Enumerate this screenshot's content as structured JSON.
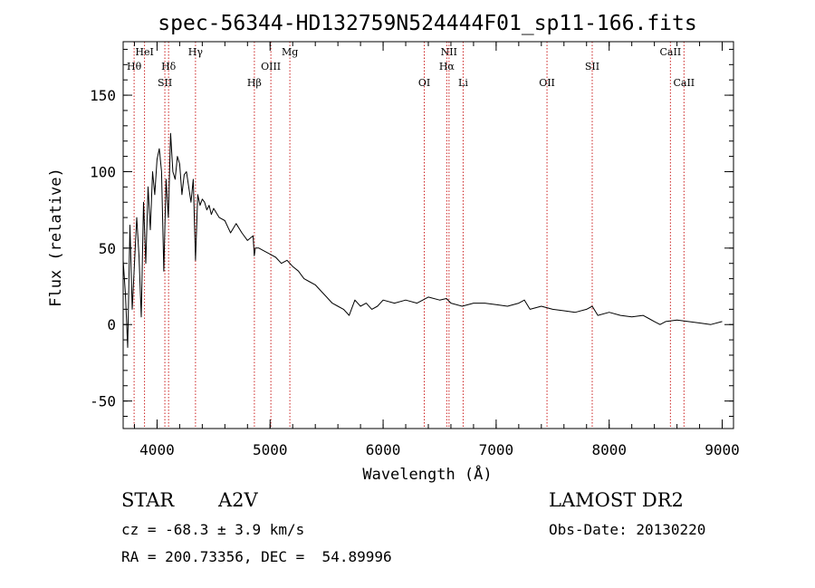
{
  "chart_data": {
    "type": "line",
    "title": "spec-56344-HD132759N524444F01_sp11-166.fits",
    "xlabel": "Wavelength (Å)",
    "ylabel": "Flux (relative)",
    "xlim": [
      3700,
      9100
    ],
    "ylim": [
      -68,
      185
    ],
    "xticks": [
      4000,
      5000,
      6000,
      7000,
      8000,
      9000
    ],
    "yticks": [
      -50,
      0,
      50,
      100,
      150
    ],
    "grid": false,
    "series": [
      {
        "x": [
          3700,
          3720,
          3740,
          3760,
          3780,
          3800,
          3820,
          3840,
          3860,
          3880,
          3900,
          3920,
          3940,
          3960,
          3980,
          4000,
          4020,
          4040,
          4060,
          4080,
          4100,
          4120,
          4140,
          4160,
          4180,
          4200,
          4220,
          4240,
          4260,
          4280,
          4300,
          4320,
          4340,
          4360,
          4380,
          4400,
          4420,
          4440,
          4460,
          4480,
          4500,
          4550,
          4600,
          4650,
          4700,
          4750,
          4800,
          4850,
          4860,
          4870,
          4900,
          4950,
          5000,
          5050,
          5100,
          5150,
          5200,
          5250,
          5300,
          5350,
          5400,
          5450,
          5500,
          5550,
          5600,
          5650,
          5700,
          5750,
          5800,
          5850,
          5900,
          5950,
          6000,
          6100,
          6200,
          6300,
          6400,
          6500,
          6560,
          6600,
          6700,
          6800,
          6900,
          7000,
          7100,
          7200,
          7250,
          7300,
          7400,
          7500,
          7600,
          7700,
          7800,
          7850,
          7900,
          8000,
          8100,
          8200,
          8300,
          8350,
          8400,
          8450,
          8500,
          8600,
          8700,
          8800,
          8900,
          9000
        ],
        "values": [
          42,
          20,
          -15,
          65,
          10,
          40,
          70,
          45,
          5,
          80,
          40,
          90,
          62,
          100,
          85,
          108,
          115,
          100,
          35,
          95,
          70,
          125,
          100,
          95,
          110,
          105,
          85,
          98,
          100,
          90,
          80,
          95,
          42,
          85,
          78,
          82,
          80,
          75,
          78,
          72,
          76,
          70,
          68,
          60,
          66,
          60,
          55,
          58,
          45,
          50,
          50,
          48,
          46,
          44,
          40,
          42,
          38,
          35,
          30,
          28,
          26,
          22,
          18,
          14,
          12,
          10,
          6,
          16,
          12,
          14,
          10,
          12,
          16,
          14,
          16,
          14,
          18,
          16,
          17,
          14,
          12,
          14,
          14,
          13,
          12,
          14,
          16,
          10,
          12,
          10,
          9,
          8,
          10,
          12,
          6,
          8,
          6,
          5,
          6,
          4,
          2,
          0,
          2,
          3,
          2,
          1,
          0,
          2
        ]
      }
    ],
    "lines": [
      {
        "label": "Hθ",
        "x": 3797,
        "row": 2
      },
      {
        "label": "HeI",
        "x": 3889,
        "row": 1
      },
      {
        "label": "SII",
        "x": 4069,
        "row": 3
      },
      {
        "label": "Hδ",
        "x": 4102,
        "row": 2
      },
      {
        "label": "Hγ",
        "x": 4340,
        "row": 1
      },
      {
        "label": "Hβ",
        "x": 4861,
        "row": 3
      },
      {
        "label": "OIII",
        "x": 5007,
        "row": 2
      },
      {
        "label": "Mg",
        "x": 5175,
        "row": 1
      },
      {
        "label": "OI",
        "x": 6364,
        "row": 3
      },
      {
        "label": "NII",
        "x": 6583,
        "row": 1
      },
      {
        "label": "Hα",
        "x": 6563,
        "row": 2
      },
      {
        "label": "Li",
        "x": 6708,
        "row": 3
      },
      {
        "label": "OII",
        "x": 7450,
        "row": 3
      },
      {
        "label": "SII",
        "x": 7850,
        "row": 2
      },
      {
        "label": "CaII",
        "x": 8542,
        "row": 1
      },
      {
        "label": "CaII",
        "x": 8662,
        "row": 3
      }
    ]
  },
  "info": {
    "object_type": "STAR",
    "subclass": "A2V",
    "survey": "LAMOST DR2",
    "cz": "cz = -68.3 ± 3.9 km/s",
    "obs_date": "Obs-Date: 20130220",
    "coords": "RA = 200.73356, DEC =  54.89996"
  },
  "colors": {
    "spectrum": "#000000",
    "line_markers": "#cc2222"
  }
}
